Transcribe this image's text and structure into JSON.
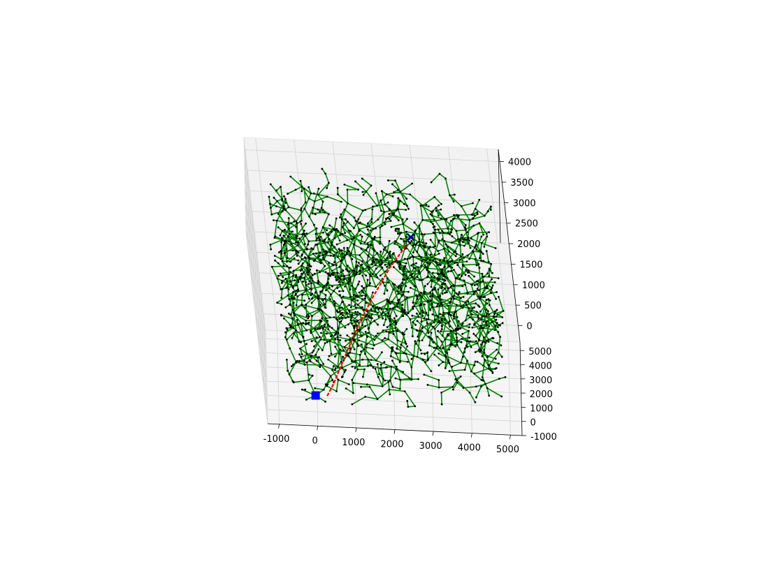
{
  "chart_data": {
    "type": "scatter",
    "projection": "3d",
    "title": "",
    "xlabel": "",
    "ylabel": "",
    "zlabel": "",
    "grid": true,
    "xlim": [
      -1300,
      5300
    ],
    "ylim": [
      -1000,
      5600
    ],
    "zlim": [
      -400,
      4300
    ],
    "x_ticks": [
      "-1000",
      "0",
      "1000",
      "2000",
      "3000",
      "4000",
      "5000"
    ],
    "y_ticks": [
      "-1000",
      "0",
      "1000",
      "2000",
      "3000",
      "4000",
      "5000"
    ],
    "z_ticks": [
      "0",
      "500",
      "1000",
      "1500",
      "2000",
      "2500",
      "3000",
      "3500",
      "4000"
    ],
    "series": [
      {
        "role": "tree edges and nodes",
        "color_edges": "#008000",
        "color_nodes": "#000000",
        "node_count_approx": 2000
      },
      {
        "role": "path",
        "color": "#ff0000",
        "points": [
          [
            300,
            0,
            0
          ],
          [
            500,
            0,
            300
          ],
          [
            900,
            800,
            800
          ],
          [
            1300,
            1500,
            1300
          ],
          [
            1700,
            2200,
            1700
          ],
          [
            2200,
            3200,
            2100
          ],
          [
            2700,
            4100,
            2400
          ]
        ]
      },
      {
        "role": "start",
        "marker": "square",
        "color": "#0000ff",
        "point": [
          0,
          0,
          0
        ]
      },
      {
        "role": "goal",
        "marker": "x",
        "color": "#00008b",
        "point": [
          2800,
          4300,
          2500
        ]
      }
    ]
  }
}
